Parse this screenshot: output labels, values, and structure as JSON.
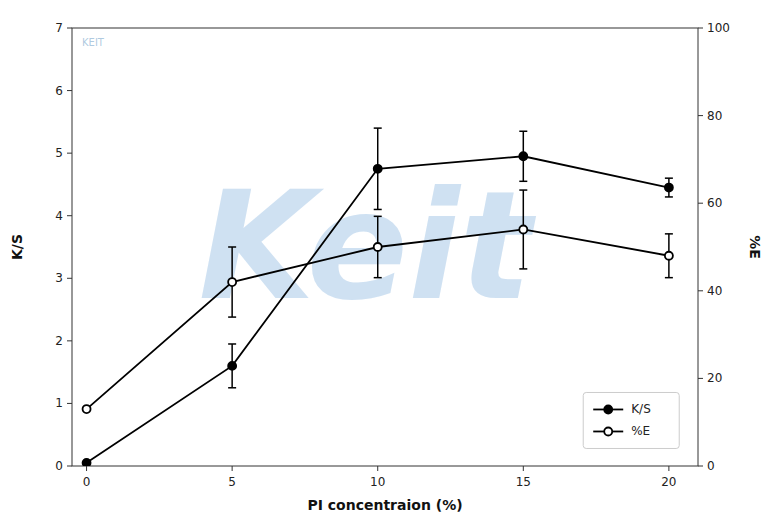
{
  "chart_data": {
    "type": "line",
    "x": [
      0,
      5,
      10,
      15,
      20
    ],
    "xlabel": "PI concentraion (%)",
    "ylabel": "K/S",
    "y2label": "%E",
    "xlim": [
      -0.5,
      21
    ],
    "ylim": [
      0,
      7
    ],
    "y2lim": [
      0,
      100
    ],
    "xticks": [
      0,
      5,
      10,
      15,
      20
    ],
    "yticks": [
      0,
      1,
      2,
      3,
      4,
      5,
      6,
      7
    ],
    "y2ticks": [
      0,
      20,
      40,
      60,
      80,
      100
    ],
    "series": [
      {
        "name": "K/S",
        "color": "#000000",
        "marker": "filled-circle",
        "values": [
          0.05,
          1.6,
          4.75,
          4.95,
          4.45
        ],
        "errors": [
          0.0,
          0.35,
          0.65,
          0.4,
          0.15
        ]
      },
      {
        "name": "%E",
        "color": "#000000",
        "marker": "open-circle",
        "axis": "y2",
        "values": [
          13,
          42,
          50,
          54,
          48
        ],
        "errors": [
          0,
          8,
          7,
          9,
          5
        ]
      }
    ],
    "legend": "lower right",
    "annotations": [
      {
        "text": "Keit",
        "color": "#A8C8E8"
      },
      {
        "text": "KEIT",
        "color": "#9ABCD8"
      }
    ]
  }
}
